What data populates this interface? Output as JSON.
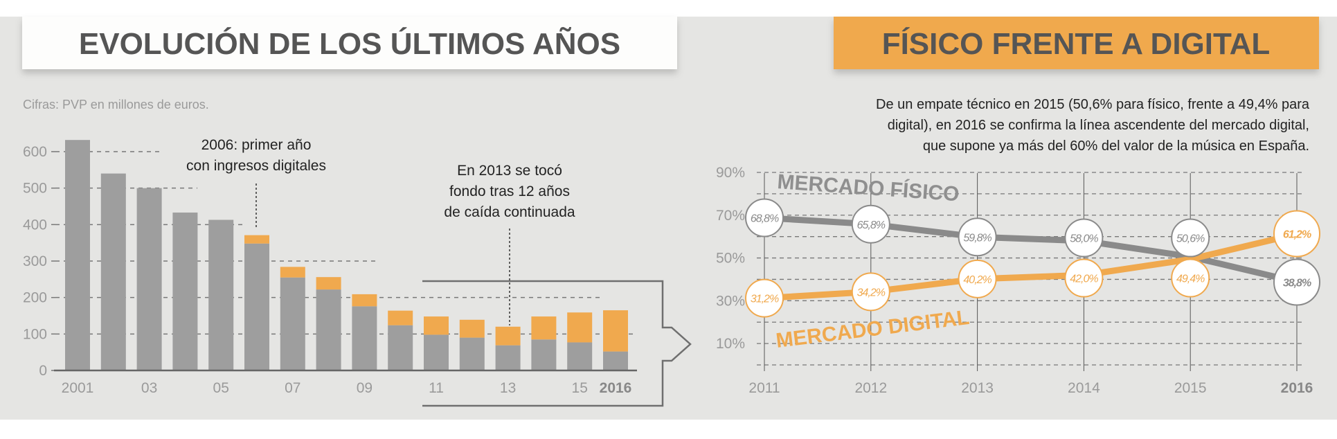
{
  "colors": {
    "background": "#e5e5e3",
    "physical": "#9e9e9e",
    "digital": "#f0a94e",
    "physical_line": "#8a8a8a",
    "title_text": "#555555"
  },
  "left": {
    "title": "EVOLUCIÓN DE LOS ÚLTIMOS AÑOS",
    "subtitle": "Cifras: PVP en millones de euros.",
    "annotation_2006": [
      "2006: primer año",
      "con ingresos digitales"
    ],
    "annotation_2013": [
      "En 2013 se tocó",
      "fondo tras 12 años",
      "de caída continuada"
    ]
  },
  "right": {
    "title": "FÍSICO FRENTE A DIGITAL",
    "paragraph": [
      "De un empate técnico en 2015 (50,6% para físico, frente a 49,4% para",
      "digital), en 2016 se confirma la línea ascendente del mercado digital,",
      "que supone ya más del 60% del valor de la música en España."
    ]
  },
  "chart_data": [
    {
      "type": "bar",
      "stacked": true,
      "categories": [
        "2001",
        "2002",
        "2003",
        "2004",
        "2005",
        "2006",
        "2007",
        "2008",
        "2009",
        "2010",
        "2011",
        "2012",
        "2013",
        "2014",
        "2015",
        "2016"
      ],
      "xtick_labels": [
        "2001",
        "",
        "03",
        "",
        "05",
        "",
        "07",
        "",
        "09",
        "",
        "11",
        "",
        "13",
        "",
        "15",
        "2016"
      ],
      "yticks": [
        0,
        100,
        200,
        300,
        400,
        500,
        600
      ],
      "ylim": [
        0,
        650
      ],
      "series": [
        {
          "key": "physical",
          "values": [
            632,
            540,
            500,
            433,
            413,
            348,
            255,
            222,
            176,
            124,
            98,
            90,
            69,
            85,
            77,
            52
          ]
        },
        {
          "key": "digital",
          "values": [
            0,
            0,
            0,
            0,
            0,
            23,
            29,
            34,
            33,
            40,
            50,
            49,
            51,
            63,
            82,
            113
          ]
        }
      ]
    },
    {
      "type": "line",
      "x": [
        "2011",
        "2012",
        "2013",
        "2014",
        "2015",
        "2016"
      ],
      "yticks": [
        "10%",
        "30%",
        "50%",
        "70%",
        "90%"
      ],
      "ylim": [
        0,
        90
      ],
      "series": [
        {
          "name": "MERCADO FÍSICO",
          "key": "physical",
          "values": [
            68.8,
            65.8,
            59.8,
            58.0,
            50.6,
            38.8
          ],
          "labels": [
            "68,8%",
            "65,8%",
            "59,8%",
            "58,0%",
            "50,6%",
            "38,8%"
          ]
        },
        {
          "name": "MERCADO DIGITAL",
          "key": "digital",
          "values": [
            31.2,
            34.2,
            40.2,
            42.0,
            49.4,
            61.2
          ],
          "labels": [
            "31,2%",
            "34,2%",
            "40,2%",
            "42,0%",
            "49,4%",
            "61,2%"
          ]
        }
      ]
    }
  ]
}
